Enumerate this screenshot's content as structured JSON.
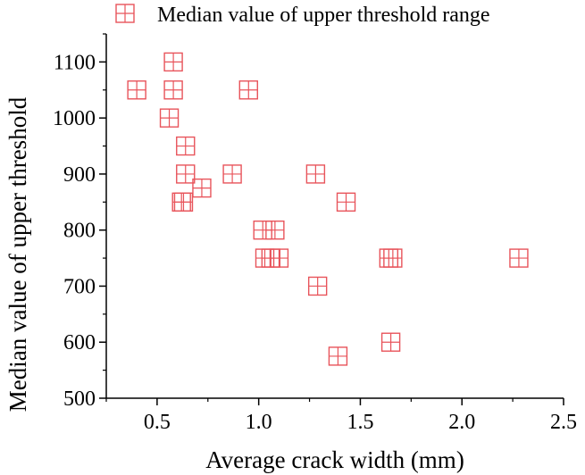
{
  "chart_data": {
    "type": "scatter",
    "xlabel": "Average crack width (mm)",
    "ylabel": "Median value of upper threshold",
    "xlim": [
      0.25,
      2.5
    ],
    "ylim": [
      500,
      1150
    ],
    "x_ticks": [
      "0.5",
      "1.0",
      "1.5",
      "2.0",
      "2.5"
    ],
    "y_ticks": [
      "500",
      "600",
      "700",
      "800",
      "900",
      "1000",
      "1100"
    ],
    "marker_color": "#e8545b",
    "legend": {
      "placement": "top",
      "label": "Median value of upper threshold range",
      "marker": "square-cross"
    },
    "series": [
      {
        "name": "Median value of upper threshold range",
        "points": [
          {
            "x": 0.4,
            "y": 1050
          },
          {
            "x": 0.58,
            "y": 1100
          },
          {
            "x": 0.58,
            "y": 1050
          },
          {
            "x": 0.56,
            "y": 1000
          },
          {
            "x": 0.95,
            "y": 1050
          },
          {
            "x": 0.64,
            "y": 950
          },
          {
            "x": 0.64,
            "y": 900
          },
          {
            "x": 0.62,
            "y": 850
          },
          {
            "x": 0.63,
            "y": 850
          },
          {
            "x": 0.72,
            "y": 875
          },
          {
            "x": 0.87,
            "y": 900
          },
          {
            "x": 1.28,
            "y": 900
          },
          {
            "x": 1.43,
            "y": 850
          },
          {
            "x": 1.02,
            "y": 800
          },
          {
            "x": 1.08,
            "y": 800
          },
          {
            "x": 1.03,
            "y": 750
          },
          {
            "x": 1.06,
            "y": 750
          },
          {
            "x": 1.1,
            "y": 750
          },
          {
            "x": 1.64,
            "y": 750
          },
          {
            "x": 1.66,
            "y": 750
          },
          {
            "x": 2.28,
            "y": 750
          },
          {
            "x": 1.29,
            "y": 700
          },
          {
            "x": 1.65,
            "y": 600
          },
          {
            "x": 1.39,
            "y": 575
          }
        ]
      }
    ]
  }
}
